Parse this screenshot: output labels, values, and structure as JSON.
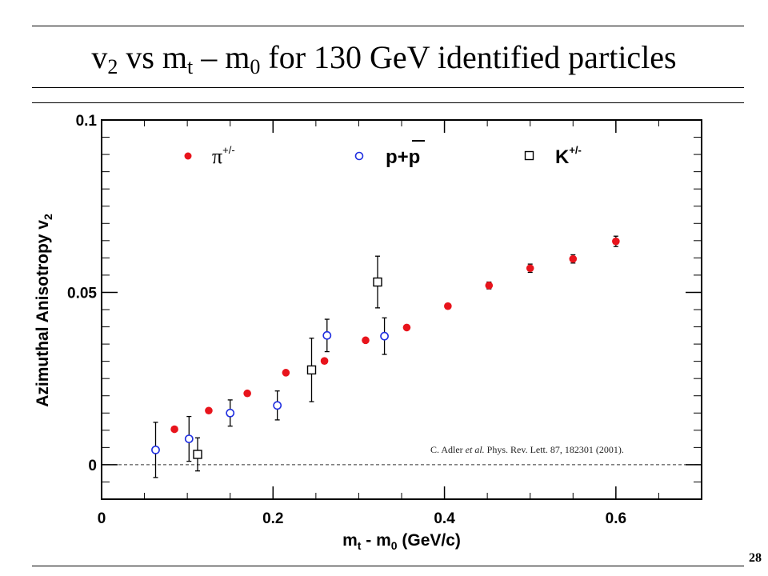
{
  "slide": {
    "title_parts": [
      "v",
      "2",
      " vs m",
      "t",
      " – m",
      "0",
      " for 130 GeV identified particles"
    ],
    "page_number": "28"
  },
  "chart_data": {
    "type": "scatter",
    "ylabel_parts": [
      "Azimuthal Anisotropy v",
      "2"
    ],
    "xlabel_parts": [
      "m",
      "t",
      " - m",
      "0",
      " (GeV/c)"
    ],
    "xlim": [
      0,
      0.7
    ],
    "ylim": [
      -0.01,
      0.1
    ],
    "x_ticks": [
      0,
      0.2,
      0.4,
      0.6
    ],
    "x_tick_labels": [
      "0",
      "0.2",
      "0.4",
      "0.6"
    ],
    "y_ticks": [
      0,
      0.05,
      0.1
    ],
    "y_tick_labels": [
      "0",
      "0.05",
      "0.1"
    ],
    "zero_line": true,
    "grid": false,
    "citation": {
      "prefix": "C. Adler ",
      "italic": "et al.",
      "suffix": " Phys. Rev. Lett. 87, 182301 (2001)."
    },
    "series": [
      {
        "name": "π+/-",
        "legend_base": "π",
        "legend_sup": "+/-",
        "marker": "filled-circle",
        "color": "#e8141c",
        "points": [
          {
            "x": 0.085,
            "y": 0.0103,
            "err": 0
          },
          {
            "x": 0.125,
            "y": 0.0157,
            "err": 0
          },
          {
            "x": 0.17,
            "y": 0.0207,
            "err": 0
          },
          {
            "x": 0.215,
            "y": 0.0267,
            "err": 0
          },
          {
            "x": 0.26,
            "y": 0.0301,
            "err": 0
          },
          {
            "x": 0.308,
            "y": 0.0361,
            "err": 0
          },
          {
            "x": 0.356,
            "y": 0.0398,
            "err": 0
          },
          {
            "x": 0.404,
            "y": 0.046,
            "err": 0
          },
          {
            "x": 0.452,
            "y": 0.052,
            "err": 0.001
          },
          {
            "x": 0.5,
            "y": 0.057,
            "err": 0.0012
          },
          {
            "x": 0.55,
            "y": 0.0597,
            "err": 0.0012
          },
          {
            "x": 0.6,
            "y": 0.0648,
            "err": 0.0015
          }
        ]
      },
      {
        "name": "p+p̄",
        "legend_text": "p+p",
        "legend_overline": true,
        "marker": "open-circle",
        "color": "#1f2ee0",
        "points": [
          {
            "x": 0.063,
            "y": 0.0043,
            "err": 0.008
          },
          {
            "x": 0.102,
            "y": 0.0075,
            "err": 0.0065
          },
          {
            "x": 0.15,
            "y": 0.015,
            "err": 0.0038
          },
          {
            "x": 0.205,
            "y": 0.0172,
            "err": 0.0042
          },
          {
            "x": 0.263,
            "y": 0.0375,
            "err": 0.0047
          },
          {
            "x": 0.33,
            "y": 0.0373,
            "err": 0.0053
          }
        ]
      },
      {
        "name": "K+/-",
        "legend_base": "K",
        "legend_sup": "+/-",
        "marker": "open-square",
        "color": "#000000",
        "points": [
          {
            "x": 0.112,
            "y": 0.003,
            "err": 0.0048
          },
          {
            "x": 0.245,
            "y": 0.0275,
            "err": 0.0092
          },
          {
            "x": 0.322,
            "y": 0.053,
            "err": 0.0075
          }
        ]
      }
    ]
  }
}
